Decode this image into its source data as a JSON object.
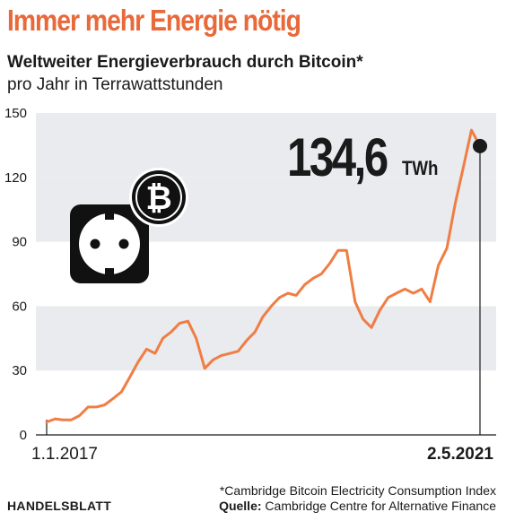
{
  "header": {
    "headline": "Immer mehr Energie nötig",
    "subtitle": "Weltweiter Energieverbrauch durch Bitcoin*",
    "unit_line": "pro Jahr in Terrawattstunden"
  },
  "colors": {
    "headline": "#e8693a",
    "line": "#f07d44",
    "band": "#e9ebee",
    "text": "#1a1a1a"
  },
  "icons": [
    "power-socket-icon",
    "bitcoin-icon"
  ],
  "chart_data": {
    "type": "line",
    "ylim": [
      0,
      150
    ],
    "yticks": [
      0,
      30,
      60,
      90,
      120,
      150
    ],
    "ytick_labels": [
      "0",
      "30",
      "60",
      "90",
      "120",
      "150"
    ],
    "x_start_label": "1.1.2017",
    "x_end_label": "2.5.2021",
    "grid": "horizontal bands",
    "annotation": {
      "value": "134,6",
      "unit": "TWh"
    },
    "x": [
      "2017-01-01",
      "2017-02-01",
      "2017-03-01",
      "2017-04-01",
      "2017-05-01",
      "2017-06-01",
      "2017-07-01",
      "2017-08-01",
      "2017-09-01",
      "2017-10-01",
      "2017-11-01",
      "2017-12-01",
      "2018-01-01",
      "2018-02-01",
      "2018-03-01",
      "2018-04-01",
      "2018-05-01",
      "2018-06-01",
      "2018-07-01",
      "2018-08-01",
      "2018-09-01",
      "2018-10-01",
      "2018-11-01",
      "2018-12-01",
      "2019-01-01",
      "2019-02-01",
      "2019-03-01",
      "2019-04-01",
      "2019-05-01",
      "2019-06-01",
      "2019-07-01",
      "2019-08-01",
      "2019-09-01",
      "2019-10-01",
      "2019-11-01",
      "2019-12-01",
      "2020-01-01",
      "2020-02-01",
      "2020-03-01",
      "2020-04-01",
      "2020-05-01",
      "2020-06-01",
      "2020-07-01",
      "2020-08-01",
      "2020-09-01",
      "2020-10-01",
      "2020-11-01",
      "2020-12-01",
      "2021-01-01",
      "2021-02-01",
      "2021-03-01",
      "2021-04-01",
      "2021-05-02"
    ],
    "y": [
      6,
      7.5,
      7,
      7,
      9,
      13,
      13,
      14,
      17,
      20,
      27,
      34,
      40,
      38,
      45,
      48,
      52,
      53,
      45,
      31,
      35,
      37,
      38,
      39,
      44,
      48,
      55,
      60,
      64,
      66,
      65,
      70,
      73,
      75,
      80,
      86,
      86,
      62,
      54,
      50,
      58,
      64,
      66,
      68,
      66,
      68,
      62,
      79,
      87,
      108,
      124,
      142,
      134.6
    ]
  }
}
